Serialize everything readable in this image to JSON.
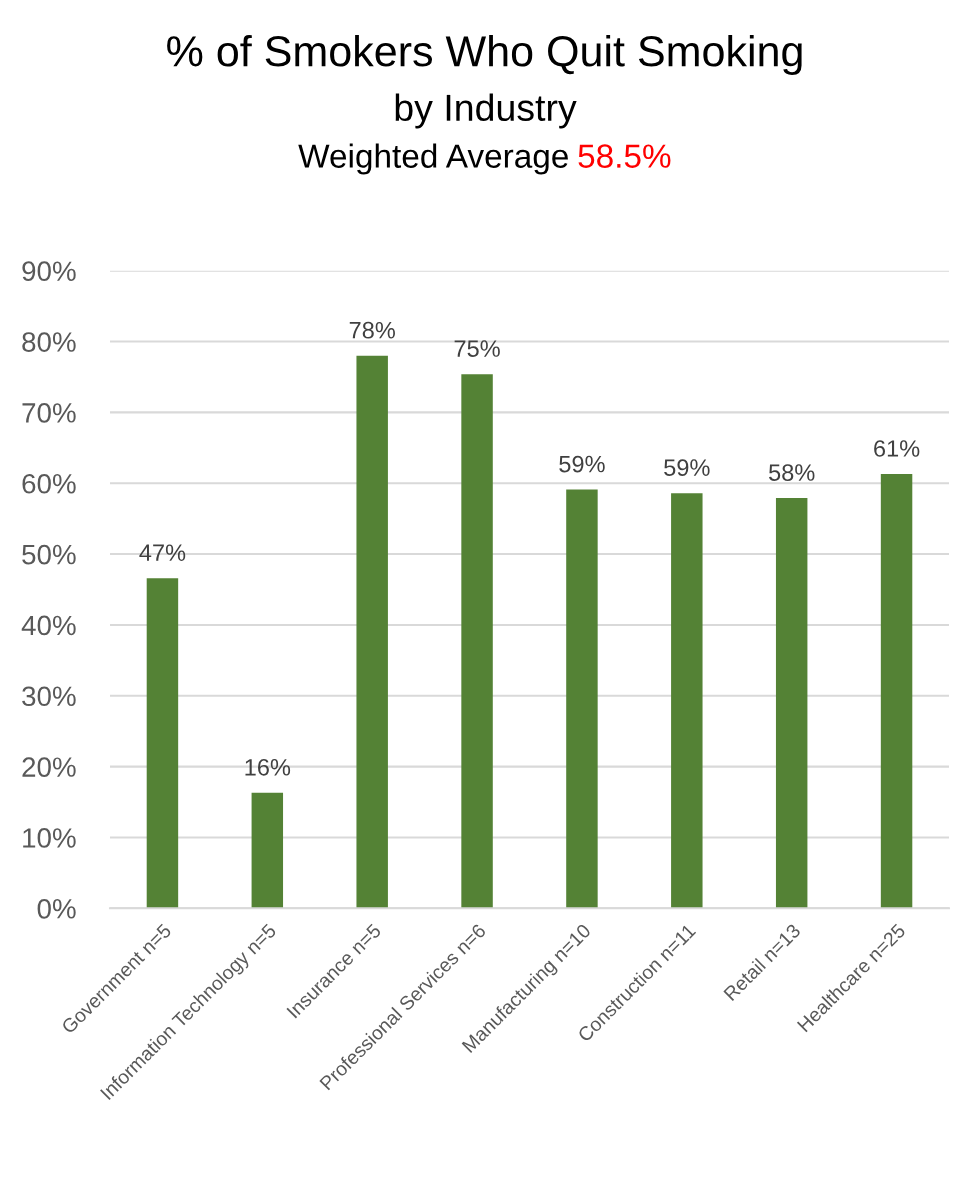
{
  "chart_data": {
    "type": "bar",
    "title": "% of Smokers Who Quit Smoking",
    "subtitle": "by Industry",
    "annotations": [
      "Weighted Average",
      "58.5%"
    ],
    "categories": [
      "Government n=5",
      "Information Technology n=5",
      "Insurance n=5",
      "Professional Services n=6",
      "Manufacturing n=10",
      "Construction n=11",
      "Retail n=13",
      "Healthcare n=25"
    ],
    "values": [
      46.6,
      16.3,
      78.0,
      75.4,
      59.1,
      58.6,
      57.9,
      61.3
    ],
    "color": "#548235",
    "value_labels": [
      "47%",
      "16%",
      "78%",
      "75%",
      "59%",
      "59%",
      "58%",
      "61%"
    ],
    "ylim": [
      0,
      90
    ],
    "yticks": [
      {
        "value": 0,
        "label": "0%"
      },
      {
        "value": 10,
        "label": "10%"
      },
      {
        "value": 20,
        "label": "20%"
      },
      {
        "value": 30,
        "label": "30%"
      },
      {
        "value": 40,
        "label": "40%"
      },
      {
        "value": 50,
        "label": "50%"
      },
      {
        "value": 60,
        "label": "60%"
      },
      {
        "value": 70,
        "label": "70%"
      },
      {
        "value": 80,
        "label": "80%"
      },
      {
        "value": 90,
        "label": "90%"
      }
    ],
    "grid": "y"
  }
}
